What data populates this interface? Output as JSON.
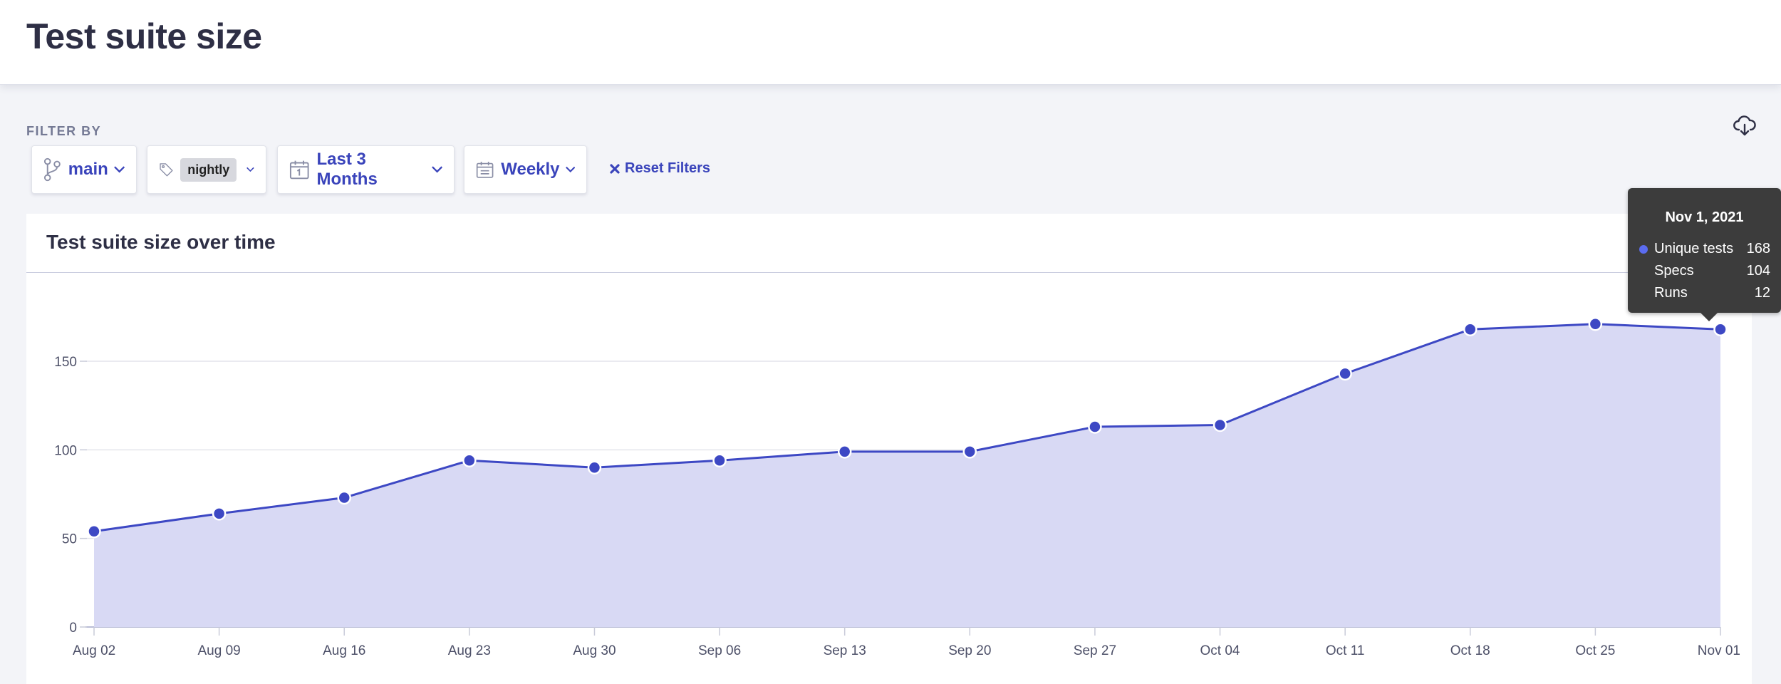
{
  "page": {
    "title": "Test suite size"
  },
  "filters": {
    "label": "FILTER BY",
    "branch": "main",
    "tag": "nightly",
    "range": "Last 3 Months",
    "interval": "Weekly",
    "reset": "Reset Filters"
  },
  "icons": {
    "download": "cloud-download-icon",
    "branch": "git-branch-icon",
    "tag": "tag-icon",
    "calendar": "calendar-icon",
    "chevron": "chevron-down-icon",
    "close": "close-icon"
  },
  "colors": {
    "accent": "#3a44bb",
    "line": "#3d48c4",
    "area": "#d8d9f4"
  },
  "card": {
    "title": "Test suite size over time"
  },
  "chart_data": {
    "type": "area",
    "x": [
      "Aug 02",
      "Aug 09",
      "Aug 16",
      "Aug 23",
      "Aug 30",
      "Sep 06",
      "Sep 13",
      "Sep 20",
      "Sep 27",
      "Oct 04",
      "Oct 11",
      "Oct 18",
      "Oct 25",
      "Nov 01"
    ],
    "series": [
      {
        "name": "Unique tests",
        "values": [
          54,
          64,
          73,
          94,
          90,
          94,
          99,
          99,
          113,
          114,
          143,
          168,
          171,
          168
        ]
      }
    ],
    "ylim": [
      0,
      185
    ],
    "yticks": [
      0,
      50,
      100,
      150
    ],
    "grid": true
  },
  "tooltip": {
    "date": "Nov 1, 2021",
    "rows": [
      {
        "label": "Unique tests",
        "value": "168",
        "color": "#5b6cf0"
      },
      {
        "label": "Specs",
        "value": "104"
      },
      {
        "label": "Runs",
        "value": "12"
      }
    ]
  }
}
